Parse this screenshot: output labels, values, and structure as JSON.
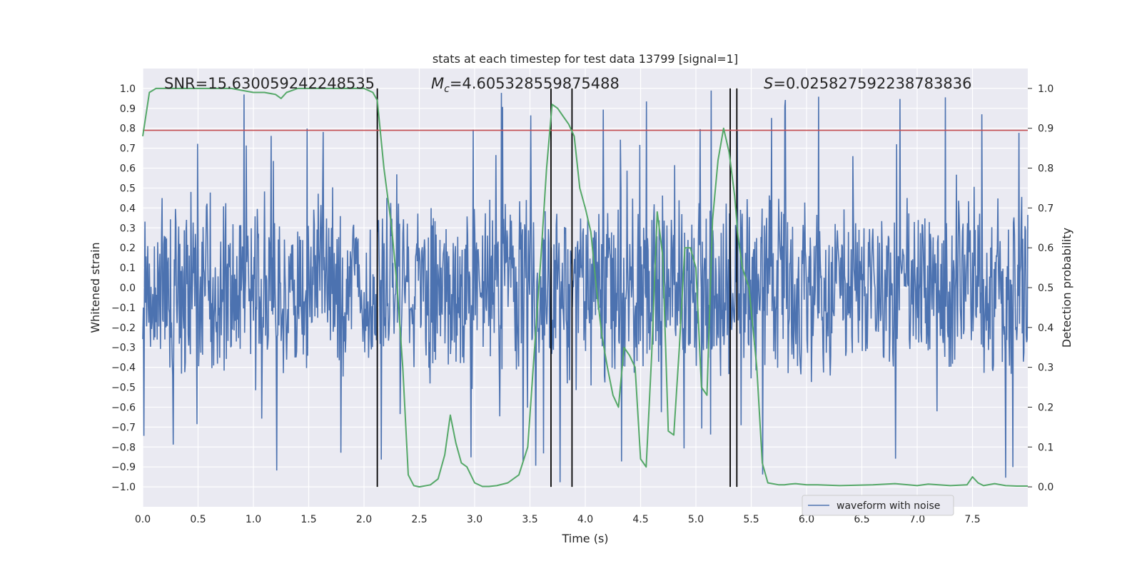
{
  "chart_data": {
    "type": "line",
    "title": "stats at each timestep for test data 13799 [signal=1]",
    "xlabel": "Time (s)",
    "ylabel_left": "Whitened strain",
    "ylabel_right": "Detection probability",
    "xlim": [
      0.0,
      8.0
    ],
    "ylim_left": [
      -1.1,
      1.1
    ],
    "ylim_right": [
      -0.05,
      1.05
    ],
    "grid": true,
    "x_ticks": [
      "0.0",
      "0.5",
      "1.0",
      "1.5",
      "2.0",
      "2.5",
      "3.0",
      "3.5",
      "4.0",
      "4.5",
      "5.0",
      "5.5",
      "6.0",
      "6.5",
      "7.0",
      "7.5"
    ],
    "y_ticks_left": [
      "1.0",
      "0.9",
      "0.8",
      "0.7",
      "0.6",
      "0.5",
      "0.4",
      "0.3",
      "0.2",
      "0.1",
      "0.0",
      "−0.1",
      "−0.2",
      "−0.3",
      "−0.4",
      "−0.5",
      "−0.6",
      "−0.7",
      "−0.8",
      "−0.9",
      "−1.0"
    ],
    "y_ticks_right": [
      "1.0",
      "0.9",
      "0.8",
      "0.7",
      "0.6",
      "0.5",
      "0.4",
      "0.3",
      "0.2",
      "0.1",
      "0.0"
    ],
    "annotations": {
      "snr": "SNR=15.630059242248535",
      "mc_symbol": "M",
      "mc_subscript": "c",
      "mc_value": "=4.605328559875488",
      "s_symbol": "S",
      "s_value": "=0.025827592238783836"
    },
    "legend": {
      "label": "waveform with noise",
      "placement": "lower-right"
    },
    "series": [
      {
        "name": "waveform with noise",
        "axis": "left",
        "color": "#4c72b0",
        "kind": "noise",
        "typical_amplitude": 0.4,
        "peak_amplitude": 0.99,
        "points": 1600
      },
      {
        "name": "detection probability",
        "axis": "right",
        "color": "#55a868",
        "x": [
          0.0,
          0.06,
          0.12,
          0.2,
          0.4,
          0.6,
          0.8,
          1.0,
          1.1,
          1.2,
          1.25,
          1.3,
          1.4,
          1.6,
          1.8,
          2.0,
          2.08,
          2.12,
          2.18,
          2.25,
          2.3,
          2.35,
          2.4,
          2.45,
          2.5,
          2.6,
          2.67,
          2.73,
          2.78,
          2.83,
          2.88,
          2.93,
          3.0,
          3.07,
          3.13,
          3.2,
          3.3,
          3.4,
          3.48,
          3.53,
          3.6,
          3.65,
          3.7,
          3.75,
          3.8,
          3.85,
          3.9,
          3.95,
          4.0,
          4.05,
          4.1,
          4.15,
          4.2,
          4.25,
          4.3,
          4.35,
          4.4,
          4.45,
          4.5,
          4.55,
          4.6,
          4.65,
          4.7,
          4.75,
          4.8,
          4.85,
          4.9,
          4.95,
          5.0,
          5.05,
          5.1,
          5.15,
          5.2,
          5.25,
          5.3,
          5.35,
          5.38,
          5.42,
          5.48,
          5.55,
          5.6,
          5.65,
          5.75,
          5.8,
          5.85,
          5.9,
          6.0,
          6.1,
          6.3,
          6.6,
          6.8,
          7.0,
          7.1,
          7.3,
          7.45,
          7.5,
          7.55,
          7.6,
          7.7,
          7.8,
          7.9,
          8.0
        ],
        "y": [
          0.88,
          0.99,
          1.0,
          1.0,
          1.0,
          1.0,
          1.0,
          0.99,
          0.99,
          0.985,
          0.975,
          0.99,
          1.0,
          1.0,
          1.0,
          1.0,
          0.99,
          0.97,
          0.8,
          0.65,
          0.5,
          0.3,
          0.03,
          0.003,
          0.0,
          0.005,
          0.02,
          0.08,
          0.18,
          0.11,
          0.06,
          0.05,
          0.01,
          0.001,
          0.001,
          0.003,
          0.01,
          0.03,
          0.1,
          0.3,
          0.58,
          0.8,
          0.96,
          0.95,
          0.93,
          0.91,
          0.88,
          0.75,
          0.7,
          0.64,
          0.5,
          0.38,
          0.3,
          0.23,
          0.2,
          0.35,
          0.33,
          0.3,
          0.07,
          0.05,
          0.33,
          0.69,
          0.58,
          0.14,
          0.13,
          0.35,
          0.6,
          0.6,
          0.55,
          0.25,
          0.23,
          0.67,
          0.82,
          0.9,
          0.84,
          0.73,
          0.63,
          0.55,
          0.5,
          0.3,
          0.06,
          0.01,
          0.005,
          0.005,
          0.007,
          0.008,
          0.005,
          0.005,
          0.003,
          0.005,
          0.008,
          0.003,
          0.007,
          0.003,
          0.005,
          0.025,
          0.01,
          0.003,
          0.008,
          0.003,
          0.002,
          0.002
        ]
      }
    ],
    "threshold_line": {
      "axis": "left",
      "value": 0.79,
      "color": "#c44e52"
    },
    "vertical_lines": [
      2.12,
      3.69,
      3.88,
      5.31,
      5.37
    ],
    "vertical_line_range": [
      -1.0,
      1.0
    ]
  }
}
